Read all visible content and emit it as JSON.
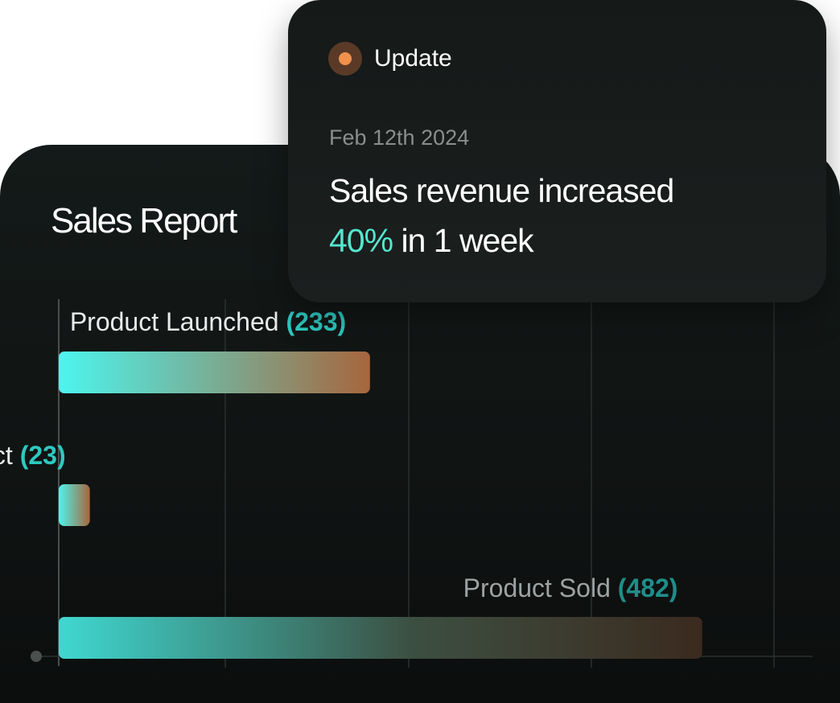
{
  "report": {
    "title": "Sales Report"
  },
  "update": {
    "tag": "Update",
    "date": "Feb 12th 2024",
    "headline_accent": "40%",
    "headline_line1": "Sales revenue increased",
    "headline_rest": " in 1 week"
  },
  "chart_data": {
    "type": "bar",
    "orientation": "horizontal",
    "title": "Sales Report",
    "categories": [
      "Product Launched",
      "Ongoing Product",
      "Product Sold"
    ],
    "values": [
      233,
      23,
      482
    ],
    "count_labels": [
      "(233)",
      "(23)",
      "(482)"
    ],
    "grid": true,
    "legend": "none"
  },
  "colors": {
    "bar_start": "#4cf5ee",
    "bar_end": "#a6663d",
    "count_text": "#2ec9c0",
    "accent_text": "#55e6cf",
    "dot": "#f0924b"
  }
}
